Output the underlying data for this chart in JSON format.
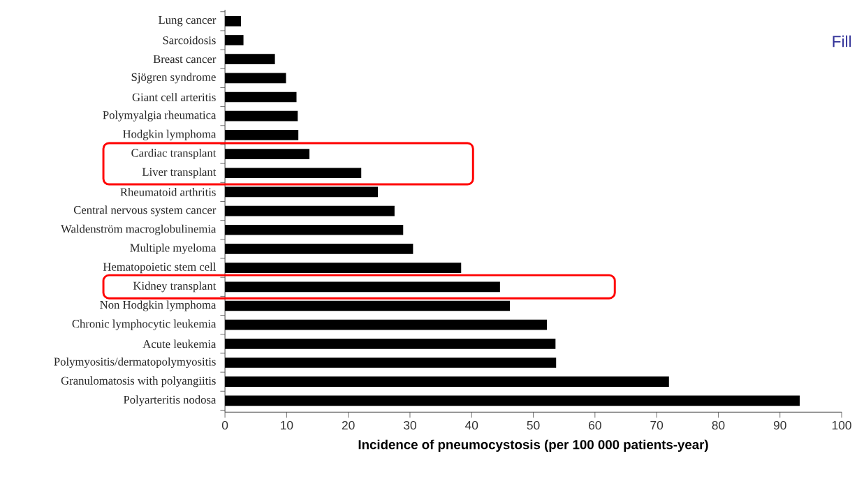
{
  "chart_data": {
    "type": "bar",
    "orientation": "horizontal",
    "xlabel": "Incidence of pneumocystosis (per 100 000 patients-year)",
    "categories": [
      "Lung cancer",
      "Sarcoidosis",
      "Breast cancer",
      "Sjögren syndrome",
      "Giant cell arteritis",
      "Polymyalgia rheumatica",
      "Hodgkin lymphoma",
      "Cardiac transplant",
      "Liver transplant",
      "Rheumatoid arthritis",
      "Central nervous system cancer",
      "Waldenström macroglobulinemia",
      "Multiple myeloma",
      "Hematopoietic stem cell",
      "Kidney transplant",
      "Non Hodgkin lymphoma",
      "Chronic lymphocytic leukemia",
      "Acute leukemia",
      "Polymyositis/dermatopolymyositis",
      "Granulomatosis with polyangiitis",
      "Polyarteritis nodosa"
    ],
    "values": [
      2.6,
      3.0,
      8.1,
      9.9,
      11.6,
      11.8,
      11.9,
      13.7,
      22.1,
      24.8,
      27.5,
      28.9,
      30.5,
      38.3,
      44.6,
      46.2,
      52.2,
      53.6,
      53.7,
      72.0,
      93.2
    ],
    "color": "#000000",
    "xlim": [
      0,
      100
    ],
    "xticks": [
      0,
      10,
      20,
      30,
      40,
      50,
      60,
      70,
      80,
      90,
      100
    ],
    "annotations": [
      "Fill"
    ]
  }
}
